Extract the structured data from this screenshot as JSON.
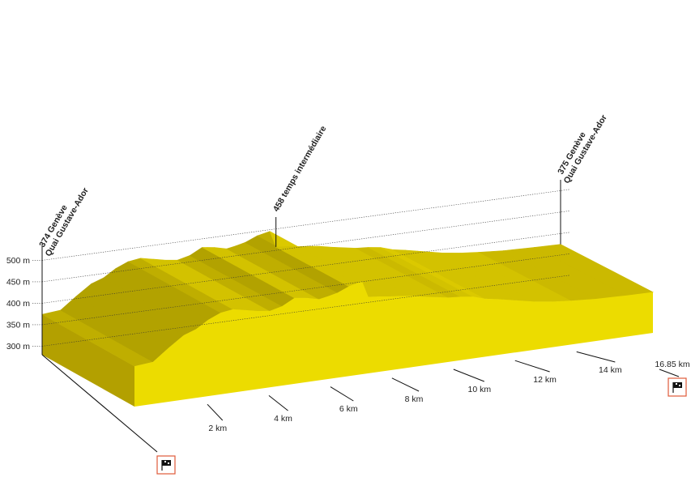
{
  "chart_data": {
    "type": "area",
    "subtype": "3d-elevation-profile",
    "title": "",
    "xlabel": "",
    "ylabel": "",
    "x_unit": "km",
    "y_unit": "m",
    "xlim": [
      0,
      16.85
    ],
    "ylim": [
      300,
      500
    ],
    "total_distance_label": "16.85 km",
    "x_ticks": [
      {
        "value": 2,
        "label": "2 km"
      },
      {
        "value": 4,
        "label": "4 km"
      },
      {
        "value": 6,
        "label": "6 km"
      },
      {
        "value": 8,
        "label": "8 km"
      },
      {
        "value": 10,
        "label": "10 km"
      },
      {
        "value": 12,
        "label": "12 km"
      },
      {
        "value": 14,
        "label": "14 km"
      }
    ],
    "y_ticks": [
      {
        "value": 300,
        "label": "300 m"
      },
      {
        "value": 350,
        "label": "350 m"
      },
      {
        "value": 400,
        "label": "400 m"
      },
      {
        "value": 450,
        "label": "450 m"
      },
      {
        "value": 500,
        "label": "500 m"
      }
    ],
    "waypoints": [
      {
        "km": 0,
        "line1": "374 Genève",
        "line2": "Quai Gustave-Ador"
      },
      {
        "km": 7.6,
        "line1": "458 temps intermédiaire",
        "line2": ""
      },
      {
        "km": 16.85,
        "line1": "375 Genève",
        "line2": "Quai Gustave-Ador"
      }
    ],
    "profile": {
      "x": [
        0,
        0.6,
        1.1,
        1.6,
        2.0,
        2.4,
        2.8,
        3.2,
        3.6,
        4.0,
        4.4,
        4.8,
        5.2,
        5.6,
        6.0,
        6.3,
        6.6,
        7.0,
        7.4,
        7.6,
        8.0,
        8.3,
        8.6,
        9.0,
        9.4,
        9.8,
        10.2,
        10.6,
        11.0,
        11.4,
        11.8,
        12.2,
        12.6,
        13.0,
        13.6,
        14.2,
        15.0,
        16.0,
        16.85
      ],
      "y": [
        374,
        378,
        405,
        430,
        440,
        458,
        470,
        474,
        468,
        462,
        458,
        465,
        480,
        476,
        469,
        473,
        478,
        490,
        496,
        458,
        455,
        452,
        450,
        446,
        440,
        435,
        430,
        428,
        424,
        415,
        410,
        404,
        398,
        392,
        386,
        382,
        378,
        376,
        375
      ]
    }
  }
}
